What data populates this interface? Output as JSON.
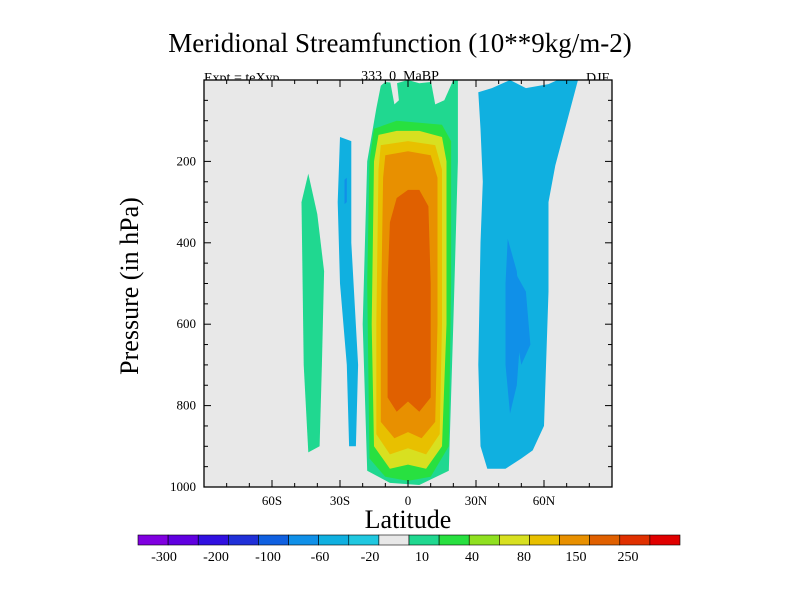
{
  "header": {
    "title": "Meridional Streamfunction (10**9kg/m-2)",
    "expt": "Expt = teXyp",
    "run": "333_0_MaBP",
    "season": "DJF"
  },
  "chart_data": {
    "type": "heatmap",
    "title": "Meridional Streamfunction (10**9kg/m-2)",
    "xlabel": "Latitude",
    "ylabel": "Pressure (in hPa)",
    "xlim": [
      -90,
      90
    ],
    "ylim": [
      1000,
      0
    ],
    "x_ticks": [
      {
        "value": -60,
        "label": "60S"
      },
      {
        "value": -30,
        "label": "30S"
      },
      {
        "value": 0,
        "label": "0"
      },
      {
        "value": 30,
        "label": "30N"
      },
      {
        "value": 60,
        "label": "60N"
      }
    ],
    "y_ticks": [
      {
        "value": 200,
        "label": "200"
      },
      {
        "value": 400,
        "label": "400"
      },
      {
        "value": 600,
        "label": "600"
      },
      {
        "value": 800,
        "label": "800"
      },
      {
        "value": 1000,
        "label": "1000"
      }
    ],
    "colorbar": {
      "colors": [
        "#8000e0",
        "#6000e0",
        "#3010e0",
        "#2030d8",
        "#1060e0",
        "#1090e8",
        "#10b0e0",
        "#20c8e0",
        "#e8e8e8",
        "#20d890",
        "#28e040",
        "#90e020",
        "#d8e020",
        "#e8c000",
        "#e89000",
        "#e06000",
        "#e03000",
        "#e00000"
      ],
      "labels": [
        "-300",
        "-200",
        "-100",
        "-60",
        "-20",
        "10",
        "40",
        "80",
        "150",
        "250"
      ],
      "label_levels": [
        -300,
        -200,
        -100,
        -60,
        -20,
        10,
        40,
        80,
        150,
        250
      ]
    },
    "background_color": "#e8e8e8",
    "regions": [
      {
        "name": "tropical-cell-outer",
        "value": 20,
        "color": "#20d890",
        "polygon": [
          [
            -12,
            14
          ],
          [
            -10,
            5
          ],
          [
            -5,
            8
          ],
          [
            0,
            0
          ],
          [
            5,
            8
          ],
          [
            10,
            5
          ],
          [
            22,
            0
          ],
          [
            22,
            200
          ],
          [
            20,
            600
          ],
          [
            18,
            960
          ],
          [
            5,
            995
          ],
          [
            -8,
            990
          ],
          [
            -18,
            960
          ],
          [
            -20,
            600
          ],
          [
            -18,
            200
          ],
          [
            -14,
            70
          ]
        ]
      },
      {
        "name": "tropical-cell-40",
        "value": 40,
        "color": "#28e040",
        "polygon": [
          [
            -15,
            120
          ],
          [
            -5,
            100
          ],
          [
            5,
            105
          ],
          [
            15,
            110
          ],
          [
            19,
            150
          ],
          [
            19,
            500
          ],
          [
            18,
            900
          ],
          [
            10,
            975
          ],
          [
            0,
            985
          ],
          [
            -10,
            975
          ],
          [
            -17,
            930
          ],
          [
            -18,
            500
          ],
          [
            -17,
            200
          ]
        ]
      },
      {
        "name": "tropical-cell-80",
        "value": 80,
        "color": "#d8e020",
        "polygon": [
          [
            -13,
            135
          ],
          [
            -5,
            125
          ],
          [
            5,
            125
          ],
          [
            15,
            140
          ],
          [
            17,
            200
          ],
          [
            17,
            600
          ],
          [
            15,
            900
          ],
          [
            8,
            955
          ],
          [
            0,
            945
          ],
          [
            -8,
            955
          ],
          [
            -15,
            900
          ],
          [
            -16,
            600
          ],
          [
            -15,
            200
          ]
        ]
      },
      {
        "name": "tropical-cell-100",
        "value": 100,
        "color": "#e8c000",
        "polygon": [
          [
            -12,
            160
          ],
          [
            0,
            150
          ],
          [
            12,
            160
          ],
          [
            15,
            220
          ],
          [
            15,
            600
          ],
          [
            14,
            870
          ],
          [
            8,
            920
          ],
          [
            0,
            905
          ],
          [
            -8,
            920
          ],
          [
            -14,
            870
          ],
          [
            -14,
            600
          ],
          [
            -13,
            220
          ]
        ]
      },
      {
        "name": "tropical-cell-150",
        "value": 150,
        "color": "#e89000",
        "polygon": [
          [
            -10,
            185
          ],
          [
            0,
            175
          ],
          [
            10,
            185
          ],
          [
            13,
            240
          ],
          [
            13,
            600
          ],
          [
            12,
            840
          ],
          [
            6,
            880
          ],
          [
            0,
            865
          ],
          [
            -6,
            880
          ],
          [
            -12,
            840
          ],
          [
            -12,
            600
          ],
          [
            -11,
            240
          ]
        ]
      },
      {
        "name": "tropical-cell-250",
        "value": 250,
        "color": "#e06000",
        "polygon": [
          [
            -5,
            290
          ],
          [
            0,
            270
          ],
          [
            5,
            270
          ],
          [
            9,
            310
          ],
          [
            10,
            500
          ],
          [
            10,
            780
          ],
          [
            5,
            815
          ],
          [
            0,
            790
          ],
          [
            -5,
            815
          ],
          [
            -9,
            780
          ],
          [
            -9,
            500
          ],
          [
            -8,
            350
          ]
        ]
      },
      {
        "name": "southern-cell-negative",
        "value": -20,
        "color": "#10b0e0",
        "polygon": [
          [
            -30,
            140
          ],
          [
            -25,
            150
          ],
          [
            -25,
            400
          ],
          [
            -22,
            700
          ],
          [
            -23,
            900
          ],
          [
            -26,
            900
          ],
          [
            -27,
            700
          ],
          [
            -30,
            500
          ],
          [
            -31,
            300
          ]
        ]
      },
      {
        "name": "southern-cell-negative-core",
        "value": -40,
        "color": "#1090e8",
        "polygon": [
          [
            -28,
            245
          ],
          [
            -27,
            240
          ],
          [
            -27,
            300
          ],
          [
            -28,
            305
          ]
        ]
      },
      {
        "name": "southern-polar-positive",
        "value": 20,
        "color": "#20d890",
        "polygon": [
          [
            -44,
            230
          ],
          [
            -40,
            330
          ],
          [
            -37,
            470
          ],
          [
            -38,
            700
          ],
          [
            -39,
            900
          ],
          [
            -44,
            915
          ],
          [
            -46,
            700
          ],
          [
            -47,
            300
          ]
        ]
      },
      {
        "name": "northern-cell-negative",
        "value": -20,
        "color": "#10b0e0",
        "polygon": [
          [
            31,
            30
          ],
          [
            37,
            20
          ],
          [
            45,
            0
          ],
          [
            52,
            20
          ],
          [
            62,
            10
          ],
          [
            66,
            0
          ],
          [
            75,
            0
          ],
          [
            65,
            210
          ],
          [
            62,
            300
          ],
          [
            62,
            520
          ],
          [
            60,
            850
          ],
          [
            55,
            910
          ],
          [
            50,
            930
          ],
          [
            43,
            955
          ],
          [
            35,
            955
          ],
          [
            32,
            900
          ],
          [
            31,
            700
          ],
          [
            32,
            400
          ],
          [
            33,
            250
          ],
          [
            32,
            120
          ]
        ]
      },
      {
        "name": "northern-cell-negative-core",
        "value": -40,
        "color": "#1090e8",
        "polygon": [
          [
            44,
            390
          ],
          [
            48,
            470
          ],
          [
            50,
            600
          ],
          [
            48,
            750
          ],
          [
            45,
            820
          ],
          [
            43,
            700
          ],
          [
            43,
            500
          ]
        ]
      },
      {
        "name": "northern-cell-negative-core-2",
        "value": -40,
        "color": "#1090e8",
        "polygon": [
          [
            46,
            460
          ],
          [
            52,
            520
          ],
          [
            54,
            650
          ],
          [
            50,
            700
          ],
          [
            47,
            600
          ]
        ]
      }
    ],
    "gaps": [
      {
        "name": "upper-gap-left",
        "color": "#e8e8e8",
        "polygon": [
          [
            -8,
            0
          ],
          [
            -5,
            0
          ],
          [
            -4,
            50
          ],
          [
            -6,
            60
          ]
        ]
      },
      {
        "name": "upper-gap-right",
        "color": "#e8e8e8",
        "polygon": [
          [
            10,
            0
          ],
          [
            20,
            0
          ],
          [
            16,
            50
          ],
          [
            12,
            60
          ]
        ]
      }
    ]
  }
}
